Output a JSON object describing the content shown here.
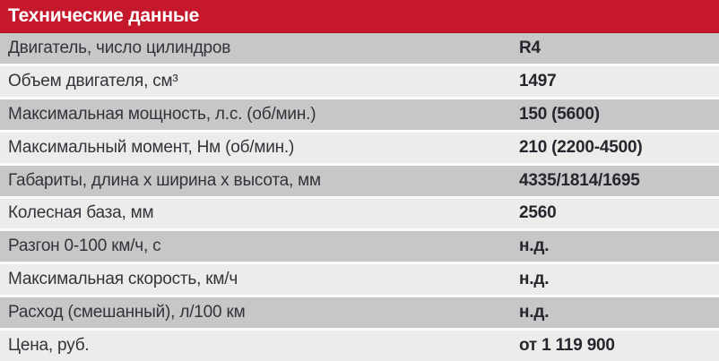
{
  "table": {
    "title": "Технические данные",
    "rows": [
      {
        "label": "Двигатель, число цилиндров",
        "value": "R4"
      },
      {
        "label": "Объем двигателя, см³",
        "value": "1497"
      },
      {
        "label": "Максимальная мощность, л.с. (об/мин.)",
        "value": "150 (5600)"
      },
      {
        "label": "Максимальный момент, Нм (об/мин.)",
        "value": "210 (2200-4500)"
      },
      {
        "label": "Габариты, длина х ширина х высота, мм",
        "value": "4335/1814/1695"
      },
      {
        "label": "Колесная база, мм",
        "value": "2560"
      },
      {
        "label": "Разгон 0-100 км/ч, с",
        "value": "н.д."
      },
      {
        "label": "Максимальная скорость, км/ч",
        "value": "н.д."
      },
      {
        "label": "Расход (смешанный), л/100 км",
        "value": "н.д."
      },
      {
        "label": "Цена, руб.",
        "value": "от 1 119 900"
      }
    ],
    "colors": {
      "header_bg": "#c5182c",
      "header_text": "#ffffff",
      "row_gray_bg": "#c6c7c7",
      "row_light_bg": "#ececeb",
      "row_separator": "#fbfbfa",
      "label_text": "#33333b",
      "value_text": "#26262e"
    }
  }
}
